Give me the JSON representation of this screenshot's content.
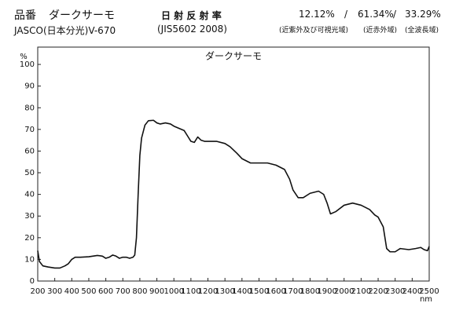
{
  "header": {
    "product_label": "品番",
    "product_name": "ダークサーモ",
    "instrument": "JASCO(日本分光)V-670",
    "measure_title": "日 射 反 射 率",
    "standard": "(JIS5602 2008)",
    "separator": "/",
    "ratios": [
      {
        "value": "12.12%",
        "label": "(近紫外及び可視光域)"
      },
      {
        "value": "61.34%",
        "label": "(近赤外域)"
      },
      {
        "value": "33.29%",
        "label": "(全波長域)"
      }
    ]
  },
  "chart_data": {
    "type": "line",
    "title": "ダークサーモ",
    "y_unit": "%",
    "x_unit": "nm",
    "color": "#111111",
    "x": [
      200,
      210,
      230,
      260,
      300,
      330,
      360,
      380,
      400,
      420,
      450,
      500,
      550,
      580,
      600,
      620,
      640,
      660,
      680,
      700,
      720,
      740,
      760,
      770,
      780,
      790,
      800,
      810,
      830,
      850,
      880,
      900,
      920,
      950,
      980,
      1000,
      1030,
      1060,
      1080,
      1100,
      1120,
      1140,
      1160,
      1180,
      1200,
      1250,
      1300,
      1330,
      1370,
      1400,
      1450,
      1500,
      1550,
      1600,
      1650,
      1680,
      1700,
      1730,
      1760,
      1800,
      1850,
      1880,
      1900,
      1920,
      1950,
      2000,
      2050,
      2100,
      2150,
      2180,
      2200,
      2230,
      2250,
      2270,
      2300,
      2330,
      2380,
      2420,
      2450,
      2470,
      2490,
      2500
    ],
    "values": [
      14,
      9,
      7,
      6.5,
      6,
      6,
      7,
      8,
      10,
      11,
      11,
      11.2,
      11.8,
      11.5,
      10.5,
      11,
      12,
      11.5,
      10.5,
      11,
      11,
      10.5,
      11,
      12,
      20,
      40,
      58,
      66,
      72,
      74,
      74.2,
      73,
      72.5,
      73,
      72.5,
      71.5,
      70.5,
      69.5,
      67,
      64.5,
      64,
      66.5,
      65,
      64.5,
      64.5,
      64.5,
      63.5,
      62,
      59,
      56.5,
      54.5,
      54.5,
      54.5,
      53.5,
      51.5,
      47,
      42,
      38.5,
      38.5,
      40.5,
      41.5,
      40,
      36,
      31,
      32,
      35,
      36,
      35,
      33,
      30.5,
      29.5,
      25,
      15,
      13.5,
      13.5,
      15,
      14.5,
      15,
      15.5,
      14.5,
      14,
      16
    ],
    "xlim": [
      200,
      2500
    ],
    "xticks": [
      200,
      300,
      400,
      500,
      600,
      700,
      800,
      900,
      1000,
      1100,
      1200,
      1300,
      1400,
      1500,
      1600,
      1700,
      1800,
      1900,
      2000,
      2100,
      2200,
      2300,
      2400,
      2500
    ],
    "ylim": [
      0,
      108
    ],
    "yticks": [
      0,
      10,
      20,
      30,
      40,
      50,
      60,
      70,
      80,
      90,
      100
    ],
    "grid": false
  }
}
